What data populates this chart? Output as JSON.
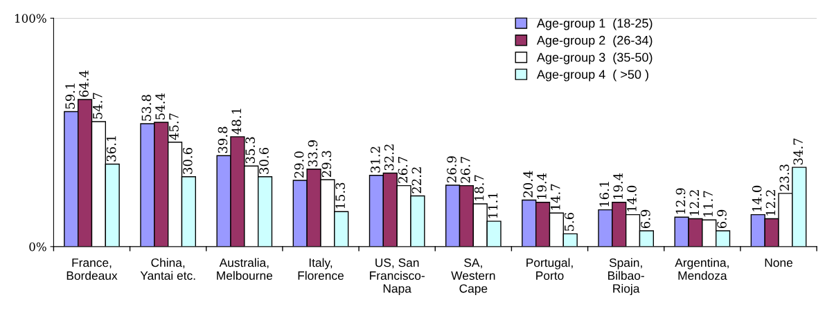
{
  "chart_data": {
    "type": "bar",
    "categories": [
      "France,\nBordeaux",
      "China,\nYantai etc.",
      "Australia,\nMelbourne",
      "Italy,\nFlorence",
      "US, San\nFrancisco-\nNapa",
      "SA,\nWestern\nCape",
      "Portugal,\nPorto",
      "Spain,\nBilbao-\nRioja",
      "Argentina,\nMendoza",
      "None"
    ],
    "series": [
      {
        "name": "Age-group 1  (18-25)",
        "color": "#9999ff",
        "values": [
          59.1,
          53.8,
          39.8,
          29.0,
          31.2,
          26.9,
          20.4,
          16.1,
          12.9,
          14.0
        ],
        "value_labels": [
          "59.1",
          "53.8",
          "39.8",
          "29.0",
          "31.2",
          "26.9",
          "20.4",
          "16.1",
          "12.9",
          "14.0"
        ]
      },
      {
        "name": "Age-group 2  (26-34)",
        "color": "#993366",
        "values": [
          64.4,
          54.4,
          48.1,
          33.9,
          32.2,
          26.7,
          19.4,
          19.4,
          12.2,
          12.2
        ],
        "value_labels": [
          "64.4",
          "54.4",
          "48.1",
          "33.9",
          "32.2",
          "26.7",
          "19.4",
          "19.4",
          "12.2",
          "12.2"
        ]
      },
      {
        "name": "Age-group 3  (35-50)",
        "color": "#ffffff",
        "values": [
          54.7,
          45.7,
          35.3,
          29.3,
          26.7,
          18.7,
          14.7,
          14.0,
          11.7,
          23.3
        ],
        "value_labels": [
          "54.7",
          "45.7",
          "35.3",
          "29.3",
          "26.7",
          "18.7",
          "14.7",
          "14.0",
          "11.7",
          "23.3"
        ]
      },
      {
        "name": "Age-group 4  ( >50 )",
        "color": "#ccffff",
        "values": [
          36.1,
          30.6,
          30.6,
          15.3,
          22.2,
          11.1,
          5.6,
          6.9,
          6.9,
          34.7
        ],
        "value_labels": [
          "36.1",
          "30.6",
          "30.6",
          "15.3",
          "22.2",
          "11.1",
          "5.6",
          "6.9",
          "6.9",
          "34.7"
        ]
      }
    ],
    "ylim": [
      0,
      100
    ],
    "yticks": [
      {
        "value": 0,
        "label": "0%"
      },
      {
        "value": 100,
        "label": "100%"
      }
    ],
    "grid": "y",
    "legend": "top right"
  }
}
